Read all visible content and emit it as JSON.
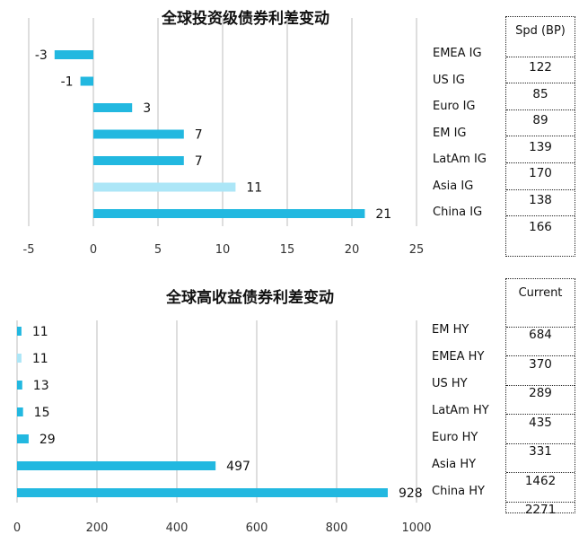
{
  "chart_data": [
    {
      "type": "bar",
      "orientation": "horizontal",
      "title": "全球投资级债券利差变动",
      "categories": [
        "EMEA IG",
        "US IG",
        "Euro IG",
        "EM IG",
        "LatAm IG",
        "Asia IG",
        "China IG"
      ],
      "values": [
        -3,
        -1,
        3,
        7,
        7,
        11,
        21
      ],
      "xlim": [
        -5,
        25
      ],
      "xticks": [
        -5,
        0,
        5,
        10,
        15,
        20,
        25
      ],
      "grid": true,
      "bar_color": "#22B8E0",
      "highlight_color": "#ACE6F7",
      "highlight_index": 5,
      "table_header": "Spd (BP)",
      "table_values": [
        "122",
        "85",
        "89",
        "139",
        "170",
        "138",
        "166"
      ]
    },
    {
      "type": "bar",
      "orientation": "horizontal",
      "title": "全球高收益债券利差变动",
      "categories": [
        "EM HY",
        "EMEA HY",
        "US HY",
        "LatAm HY",
        "Euro HY",
        "Asia HY",
        "China HY"
      ],
      "values": [
        11,
        11,
        13,
        15,
        29,
        497,
        928
      ],
      "xlim": [
        0,
        1000
      ],
      "xticks": [
        0,
        200,
        400,
        600,
        800,
        1000
      ],
      "grid": true,
      "bar_color": "#22B8E0",
      "highlight_color": "#ACE6F7",
      "highlight_index": 1,
      "table_header": "Current",
      "table_values": [
        "684",
        "370",
        "289",
        "435",
        "331",
        "1462",
        "2271"
      ]
    }
  ]
}
